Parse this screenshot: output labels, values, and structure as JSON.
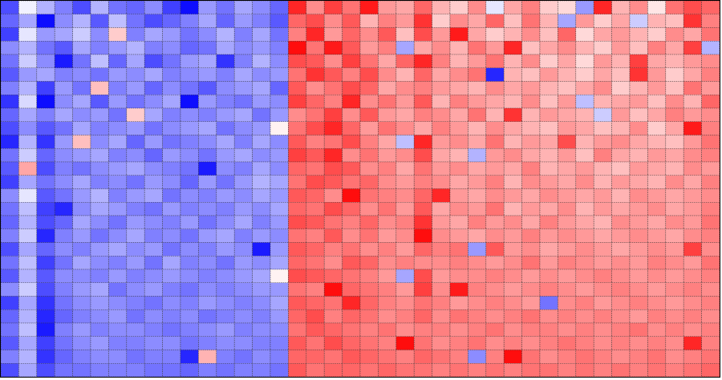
{
  "chart_data": {
    "type": "heatmap",
    "title": "",
    "xlabel": "",
    "ylabel": "",
    "rows": 28,
    "cols": 40,
    "value_range": [
      -1,
      1
    ],
    "colormap": {
      "negative": "#0000ff",
      "zero": "#ffffff",
      "positive": "#ff0000"
    },
    "grid": true,
    "grid_style": "dotted",
    "values": [
      [
        -0.7,
        -0.05,
        -0.3,
        -0.5,
        -0.7,
        -0.3,
        -0.55,
        -0.6,
        -0.45,
        -0.75,
        -0.95,
        -0.4,
        -0.55,
        -0.35,
        -0.45,
        -0.6,
        0.85,
        0.45,
        0.75,
        0.55,
        0.9,
        0.4,
        0.35,
        0.6,
        0.3,
        0.2,
        0.45,
        -0.1,
        0.35,
        0.5,
        0.2,
        0.15,
        -0.4,
        0.85,
        0.3,
        0.45,
        0.1,
        0.55,
        0.7,
        0.6
      ],
      [
        -0.6,
        -0.35,
        -0.95,
        -0.45,
        -0.3,
        -0.65,
        -0.25,
        -0.55,
        -0.7,
        -0.6,
        -0.5,
        -0.35,
        -0.6,
        -0.4,
        -0.5,
        -0.65,
        0.6,
        0.7,
        0.45,
        0.65,
        0.3,
        0.5,
        0.4,
        0.8,
        0.2,
        0.45,
        0.35,
        0.6,
        0.25,
        0.55,
        0.3,
        -0.35,
        0.4,
        0.2,
        0.35,
        -0.2,
        0.3,
        0.25,
        0.8,
        0.5
      ],
      [
        -0.75,
        -0.1,
        -0.4,
        -0.35,
        -0.2,
        -0.45,
        0.2,
        -0.5,
        -0.35,
        -0.4,
        -0.55,
        -0.45,
        -0.3,
        -0.5,
        -0.35,
        -0.55,
        0.5,
        0.85,
        0.4,
        0.6,
        0.45,
        0.65,
        0.25,
        0.7,
        0.4,
        0.9,
        0.35,
        0.2,
        0.3,
        0.45,
        0.25,
        0.6,
        0.15,
        0.35,
        0.4,
        0.3,
        0.2,
        0.45,
        0.35,
        0.55
      ],
      [
        -0.45,
        -0.3,
        -0.55,
        -0.65,
        -0.35,
        -0.5,
        -0.4,
        -0.3,
        -0.5,
        -0.45,
        -0.6,
        -0.55,
        -0.35,
        -0.45,
        -0.4,
        -0.5,
        0.95,
        0.55,
        0.9,
        0.65,
        0.4,
        0.5,
        -0.35,
        0.35,
        0.45,
        0.3,
        0.55,
        0.4,
        0.85,
        0.25,
        0.35,
        0.45,
        0.3,
        0.2,
        0.4,
        0.25,
        0.5,
        0.35,
        0.75,
        -0.3
      ],
      [
        -0.55,
        -0.2,
        -0.45,
        -0.9,
        -0.55,
        -0.25,
        -0.6,
        -0.35,
        -0.7,
        -0.55,
        -0.4,
        -0.35,
        -0.8,
        -0.5,
        -0.3,
        -0.45,
        0.7,
        0.65,
        0.45,
        0.75,
        0.55,
        0.35,
        0.6,
        0.85,
        0.5,
        0.3,
        0.4,
        0.55,
        0.3,
        0.45,
        0.2,
        0.35,
        0.15,
        0.4,
        0.3,
        0.75,
        0.35,
        0.3,
        0.4,
        0.45
      ],
      [
        -0.65,
        -0.4,
        -0.35,
        -0.5,
        -0.45,
        -0.55,
        -0.4,
        -0.45,
        -0.35,
        -0.5,
        -0.45,
        -0.4,
        -0.5,
        -0.35,
        -0.45,
        -0.4,
        0.55,
        0.8,
        0.65,
        0.5,
        0.7,
        0.45,
        0.3,
        0.6,
        0.35,
        0.45,
        0.55,
        -0.85,
        0.3,
        0.25,
        0.4,
        0.3,
        0.2,
        0.35,
        0.25,
        0.8,
        0.4,
        0.2,
        0.35,
        0.5
      ],
      [
        -0.5,
        -0.3,
        -0.75,
        -0.4,
        -0.55,
        0.25,
        -0.5,
        -0.4,
        -0.6,
        -0.45,
        -0.55,
        -0.65,
        -0.45,
        -0.4,
        -0.35,
        -0.6,
        0.65,
        0.45,
        0.55,
        0.7,
        0.6,
        0.35,
        0.45,
        0.5,
        0.4,
        0.35,
        0.3,
        0.45,
        0.35,
        0.4,
        0.3,
        0.25,
        0.35,
        0.45,
        0.2,
        0.3,
        0.4,
        0.25,
        0.55,
        0.4
      ],
      [
        -0.8,
        -0.15,
        -0.95,
        -0.45,
        -0.35,
        -0.65,
        -0.4,
        -0.55,
        -0.45,
        -0.35,
        -0.95,
        -0.4,
        -0.5,
        -0.55,
        -0.4,
        -0.45,
        0.75,
        0.6,
        0.5,
        0.85,
        0.45,
        0.55,
        0.4,
        0.65,
        0.3,
        0.5,
        0.4,
        0.35,
        0.3,
        0.45,
        0.25,
        0.4,
        -0.25,
        0.3,
        0.35,
        0.4,
        0.25,
        0.45,
        0.3,
        0.6
      ],
      [
        -0.6,
        -0.35,
        -0.5,
        -0.35,
        -0.45,
        -0.4,
        -0.55,
        0.2,
        -0.35,
        -0.5,
        -0.45,
        -0.5,
        -0.4,
        -0.35,
        -0.55,
        -0.4,
        0.45,
        0.55,
        0.75,
        0.45,
        0.65,
        0.4,
        0.35,
        0.5,
        0.45,
        0.35,
        0.55,
        0.3,
        0.8,
        0.3,
        0.4,
        0.35,
        0.3,
        -0.2,
        0.4,
        0.25,
        0.35,
        0.5,
        0.4,
        0.45
      ],
      [
        -0.7,
        -0.45,
        -0.65,
        -0.55,
        -0.35,
        -0.5,
        -0.45,
        -0.4,
        -0.55,
        -0.45,
        -0.4,
        -0.35,
        -0.55,
        -0.45,
        -0.4,
        0.05,
        0.55,
        0.7,
        0.85,
        0.6,
        0.4,
        0.55,
        0.45,
        0.35,
        0.5,
        0.4,
        0.3,
        0.45,
        0.35,
        0.3,
        0.25,
        0.4,
        0.35,
        0.25,
        0.3,
        0.45,
        0.2,
        0.35,
        0.9,
        0.5
      ],
      [
        -0.85,
        -0.3,
        -0.8,
        -0.4,
        0.25,
        -0.45,
        -0.35,
        -0.6,
        -0.4,
        -0.55,
        -0.5,
        -0.45,
        -0.35,
        -0.5,
        -0.35,
        -0.45,
        0.65,
        0.5,
        0.55,
        0.7,
        0.5,
        0.35,
        -0.25,
        0.85,
        0.4,
        0.45,
        0.35,
        0.55,
        0.3,
        0.4,
        0.35,
        0.7,
        0.3,
        0.4,
        0.45,
        0.35,
        0.3,
        0.25,
        0.4,
        0.55
      ],
      [
        -0.55,
        -0.2,
        -0.6,
        -0.45,
        -0.4,
        -0.35,
        -0.5,
        -0.45,
        -0.6,
        -0.4,
        -0.45,
        -0.55,
        -0.4,
        -0.35,
        -0.45,
        -0.4,
        0.75,
        0.65,
        0.85,
        0.45,
        0.55,
        0.4,
        0.45,
        0.7,
        0.35,
        0.3,
        -0.3,
        0.4,
        0.45,
        0.35,
        0.3,
        0.4,
        0.25,
        0.5,
        0.35,
        0.3,
        0.4,
        0.35,
        0.45,
        0.5
      ],
      [
        -0.65,
        0.35,
        -0.7,
        -0.5,
        -0.55,
        -0.45,
        -0.4,
        -0.35,
        -0.45,
        -0.5,
        -0.55,
        -0.9,
        -0.45,
        -0.5,
        -0.35,
        -0.45,
        0.6,
        0.55,
        0.7,
        0.65,
        0.45,
        0.5,
        0.35,
        0.55,
        0.4,
        0.45,
        0.35,
        0.4,
        0.35,
        0.5,
        0.3,
        0.35,
        0.4,
        0.3,
        0.25,
        0.4,
        0.35,
        0.3,
        0.45,
        0.4
      ],
      [
        -0.75,
        -0.35,
        -0.55,
        -0.45,
        -0.35,
        -0.5,
        -0.45,
        -0.55,
        -0.4,
        -0.45,
        -0.6,
        -0.4,
        -0.55,
        -0.4,
        -0.3,
        -0.35,
        0.55,
        0.7,
        0.65,
        0.55,
        0.6,
        0.45,
        0.4,
        0.5,
        0.45,
        0.35,
        0.4,
        0.5,
        0.3,
        0.45,
        0.4,
        0.35,
        0.45,
        0.3,
        0.4,
        0.35,
        0.3,
        0.45,
        0.35,
        0.5
      ],
      [
        -0.45,
        -0.1,
        -0.65,
        -0.55,
        -0.4,
        -0.3,
        -0.5,
        -0.4,
        -0.35,
        -0.55,
        -0.45,
        -0.5,
        -0.4,
        -0.45,
        -0.35,
        -0.4,
        0.65,
        0.6,
        0.45,
        0.95,
        0.55,
        0.5,
        0.45,
        0.6,
        0.85,
        0.4,
        0.35,
        0.45,
        0.4,
        0.35,
        0.45,
        0.4,
        0.35,
        0.4,
        0.3,
        0.45,
        0.4,
        0.35,
        0.4,
        0.45
      ],
      [
        -0.55,
        -0.25,
        -0.75,
        -0.85,
        -0.45,
        -0.35,
        -0.4,
        -0.5,
        -0.55,
        -0.4,
        -0.5,
        -0.45,
        -0.5,
        -0.4,
        -0.45,
        -0.35,
        0.6,
        0.55,
        0.7,
        0.6,
        0.45,
        0.55,
        0.4,
        0.65,
        0.35,
        0.45,
        0.4,
        0.55,
        0.3,
        0.4,
        0.35,
        0.45,
        0.3,
        0.4,
        0.35,
        0.4,
        0.45,
        0.35,
        0.4,
        0.5
      ],
      [
        -0.6,
        -0.3,
        -0.7,
        -0.6,
        -0.35,
        -0.45,
        -0.55,
        -0.4,
        -0.45,
        -0.5,
        -0.4,
        -0.55,
        -0.45,
        -0.35,
        -0.5,
        -0.4,
        0.7,
        0.65,
        0.55,
        0.5,
        0.6,
        0.45,
        0.5,
        0.8,
        0.4,
        0.35,
        0.5,
        0.4,
        0.45,
        0.35,
        0.5,
        0.4,
        0.35,
        0.3,
        0.45,
        0.4,
        0.35,
        0.45,
        0.4,
        0.55
      ],
      [
        -0.5,
        -0.2,
        -0.85,
        -0.5,
        -0.4,
        -0.55,
        -0.45,
        -0.35,
        -0.5,
        -0.45,
        -0.55,
        -0.4,
        -0.35,
        -0.5,
        -0.4,
        -0.45,
        0.55,
        0.5,
        0.65,
        0.45,
        0.55,
        0.4,
        0.45,
        0.95,
        0.45,
        0.4,
        0.35,
        0.45,
        0.4,
        0.5,
        0.4,
        0.45,
        0.4,
        0.35,
        0.4,
        0.45,
        0.4,
        0.35,
        0.45,
        0.5
      ],
      [
        -0.7,
        -0.35,
        -0.6,
        -0.45,
        -0.5,
        -0.4,
        -0.35,
        -0.45,
        -0.4,
        -0.55,
        -0.45,
        -0.5,
        -0.4,
        -0.45,
        -0.9,
        -0.4,
        0.65,
        0.6,
        0.5,
        0.55,
        0.45,
        0.5,
        0.4,
        0.6,
        0.5,
        0.55,
        -0.4,
        0.65,
        0.4,
        0.45,
        0.35,
        0.4,
        0.45,
        0.4,
        0.35,
        0.4,
        0.45,
        0.4,
        0.75,
        0.45
      ],
      [
        -0.55,
        -0.25,
        -0.75,
        -0.55,
        -0.35,
        -0.45,
        -0.5,
        -0.4,
        -0.55,
        -0.35,
        -0.5,
        -0.45,
        -0.55,
        -0.4,
        -0.45,
        -0.35,
        0.6,
        0.55,
        0.45,
        0.65,
        0.6,
        0.45,
        0.5,
        0.45,
        0.45,
        0.5,
        0.45,
        0.4,
        0.45,
        0.55,
        0.4,
        0.5,
        0.45,
        0.4,
        0.45,
        0.4,
        0.5,
        0.45,
        0.4,
        0.55
      ],
      [
        -0.65,
        -0.3,
        -0.65,
        -0.45,
        -0.45,
        -0.5,
        -0.4,
        -0.5,
        -0.45,
        -0.4,
        -0.45,
        -0.5,
        -0.45,
        -0.4,
        -0.35,
        0.05,
        0.7,
        0.65,
        0.6,
        0.55,
        0.5,
        0.4,
        -0.35,
        0.7,
        0.4,
        0.45,
        0.45,
        0.5,
        0.45,
        0.4,
        0.45,
        0.4,
        0.45,
        0.5,
        0.45,
        0.4,
        0.45,
        0.4,
        0.45,
        0.5
      ],
      [
        -0.45,
        -0.2,
        -0.7,
        -0.5,
        -0.4,
        -0.35,
        -0.55,
        -0.45,
        -0.4,
        -0.5,
        -0.55,
        -0.45,
        -0.5,
        -0.45,
        -0.4,
        -0.4,
        0.55,
        0.5,
        0.95,
        0.6,
        0.55,
        0.5,
        0.4,
        0.75,
        0.45,
        0.9,
        0.5,
        0.45,
        0.4,
        0.45,
        0.5,
        0.45,
        0.4,
        0.45,
        0.5,
        0.45,
        0.4,
        0.45,
        0.5,
        0.45
      ],
      [
        -0.75,
        -0.35,
        -0.8,
        -0.55,
        -0.45,
        -0.4,
        -0.45,
        -0.5,
        -0.55,
        -0.45,
        -0.5,
        -0.4,
        -0.45,
        -0.5,
        -0.45,
        -0.35,
        0.65,
        0.6,
        0.55,
        0.85,
        0.6,
        0.5,
        0.45,
        0.55,
        0.5,
        0.4,
        0.45,
        0.5,
        0.45,
        0.4,
        -0.55,
        0.45,
        0.5,
        0.4,
        0.45,
        0.5,
        0.45,
        0.4,
        0.45,
        0.5
      ],
      [
        -0.6,
        -0.3,
        -0.85,
        -0.6,
        -0.5,
        -0.45,
        -0.4,
        -0.55,
        -0.45,
        -0.5,
        -0.45,
        -0.55,
        -0.5,
        -0.45,
        -0.5,
        -0.4,
        0.6,
        0.7,
        0.5,
        0.6,
        0.55,
        0.45,
        0.5,
        0.6,
        0.45,
        0.55,
        0.5,
        0.45,
        0.5,
        0.55,
        0.45,
        0.5,
        0.45,
        0.5,
        0.45,
        0.4,
        0.5,
        0.45,
        0.5,
        0.45
      ],
      [
        -0.55,
        -0.25,
        -0.9,
        -0.5,
        -0.4,
        -0.5,
        -0.45,
        -0.45,
        -0.5,
        -0.55,
        -0.5,
        -0.45,
        -0.4,
        -0.5,
        -0.45,
        -0.45,
        0.55,
        0.65,
        0.6,
        0.55,
        0.5,
        0.55,
        0.45,
        0.5,
        0.5,
        0.45,
        0.5,
        0.55,
        0.45,
        0.5,
        0.5,
        0.45,
        0.5,
        0.45,
        0.5,
        0.55,
        0.45,
        0.5,
        0.45,
        0.5
      ],
      [
        -0.65,
        -0.35,
        -0.75,
        -0.55,
        -0.45,
        -0.4,
        -0.5,
        -0.5,
        -0.45,
        -0.45,
        -0.55,
        -0.5,
        -0.45,
        -0.45,
        -0.5,
        -0.5,
        0.65,
        0.55,
        0.7,
        0.6,
        0.55,
        0.5,
        0.95,
        0.55,
        0.45,
        0.5,
        0.55,
        0.45,
        0.5,
        0.45,
        0.5,
        0.55,
        0.5,
        0.45,
        0.5,
        0.45,
        0.5,
        0.45,
        0.85,
        0.5
      ],
      [
        -0.5,
        -0.3,
        -0.8,
        -0.6,
        -0.5,
        -0.45,
        -0.45,
        -0.55,
        -0.5,
        -0.5,
        -0.85,
        0.3,
        -0.5,
        -0.55,
        -0.45,
        -0.5,
        0.6,
        0.6,
        0.55,
        0.65,
        0.6,
        0.55,
        0.5,
        0.6,
        0.55,
        0.5,
        -0.45,
        0.5,
        0.95,
        0.55,
        0.45,
        0.5,
        0.55,
        0.5,
        0.45,
        0.5,
        0.55,
        0.45,
        0.5,
        0.55
      ],
      [
        -0.7,
        -0.35,
        -0.7,
        -0.55,
        -0.55,
        -0.5,
        -0.5,
        -0.5,
        -0.55,
        -0.55,
        -0.6,
        -0.5,
        -0.55,
        -0.5,
        -0.5,
        -0.55,
        0.65,
        0.55,
        0.6,
        0.6,
        0.55,
        0.6,
        0.55,
        0.55,
        0.5,
        0.55,
        0.5,
        0.55,
        0.5,
        0.55,
        0.55,
        0.5,
        0.55,
        0.5,
        0.55,
        0.5,
        0.55,
        0.5,
        0.55,
        0.6
      ]
    ]
  }
}
